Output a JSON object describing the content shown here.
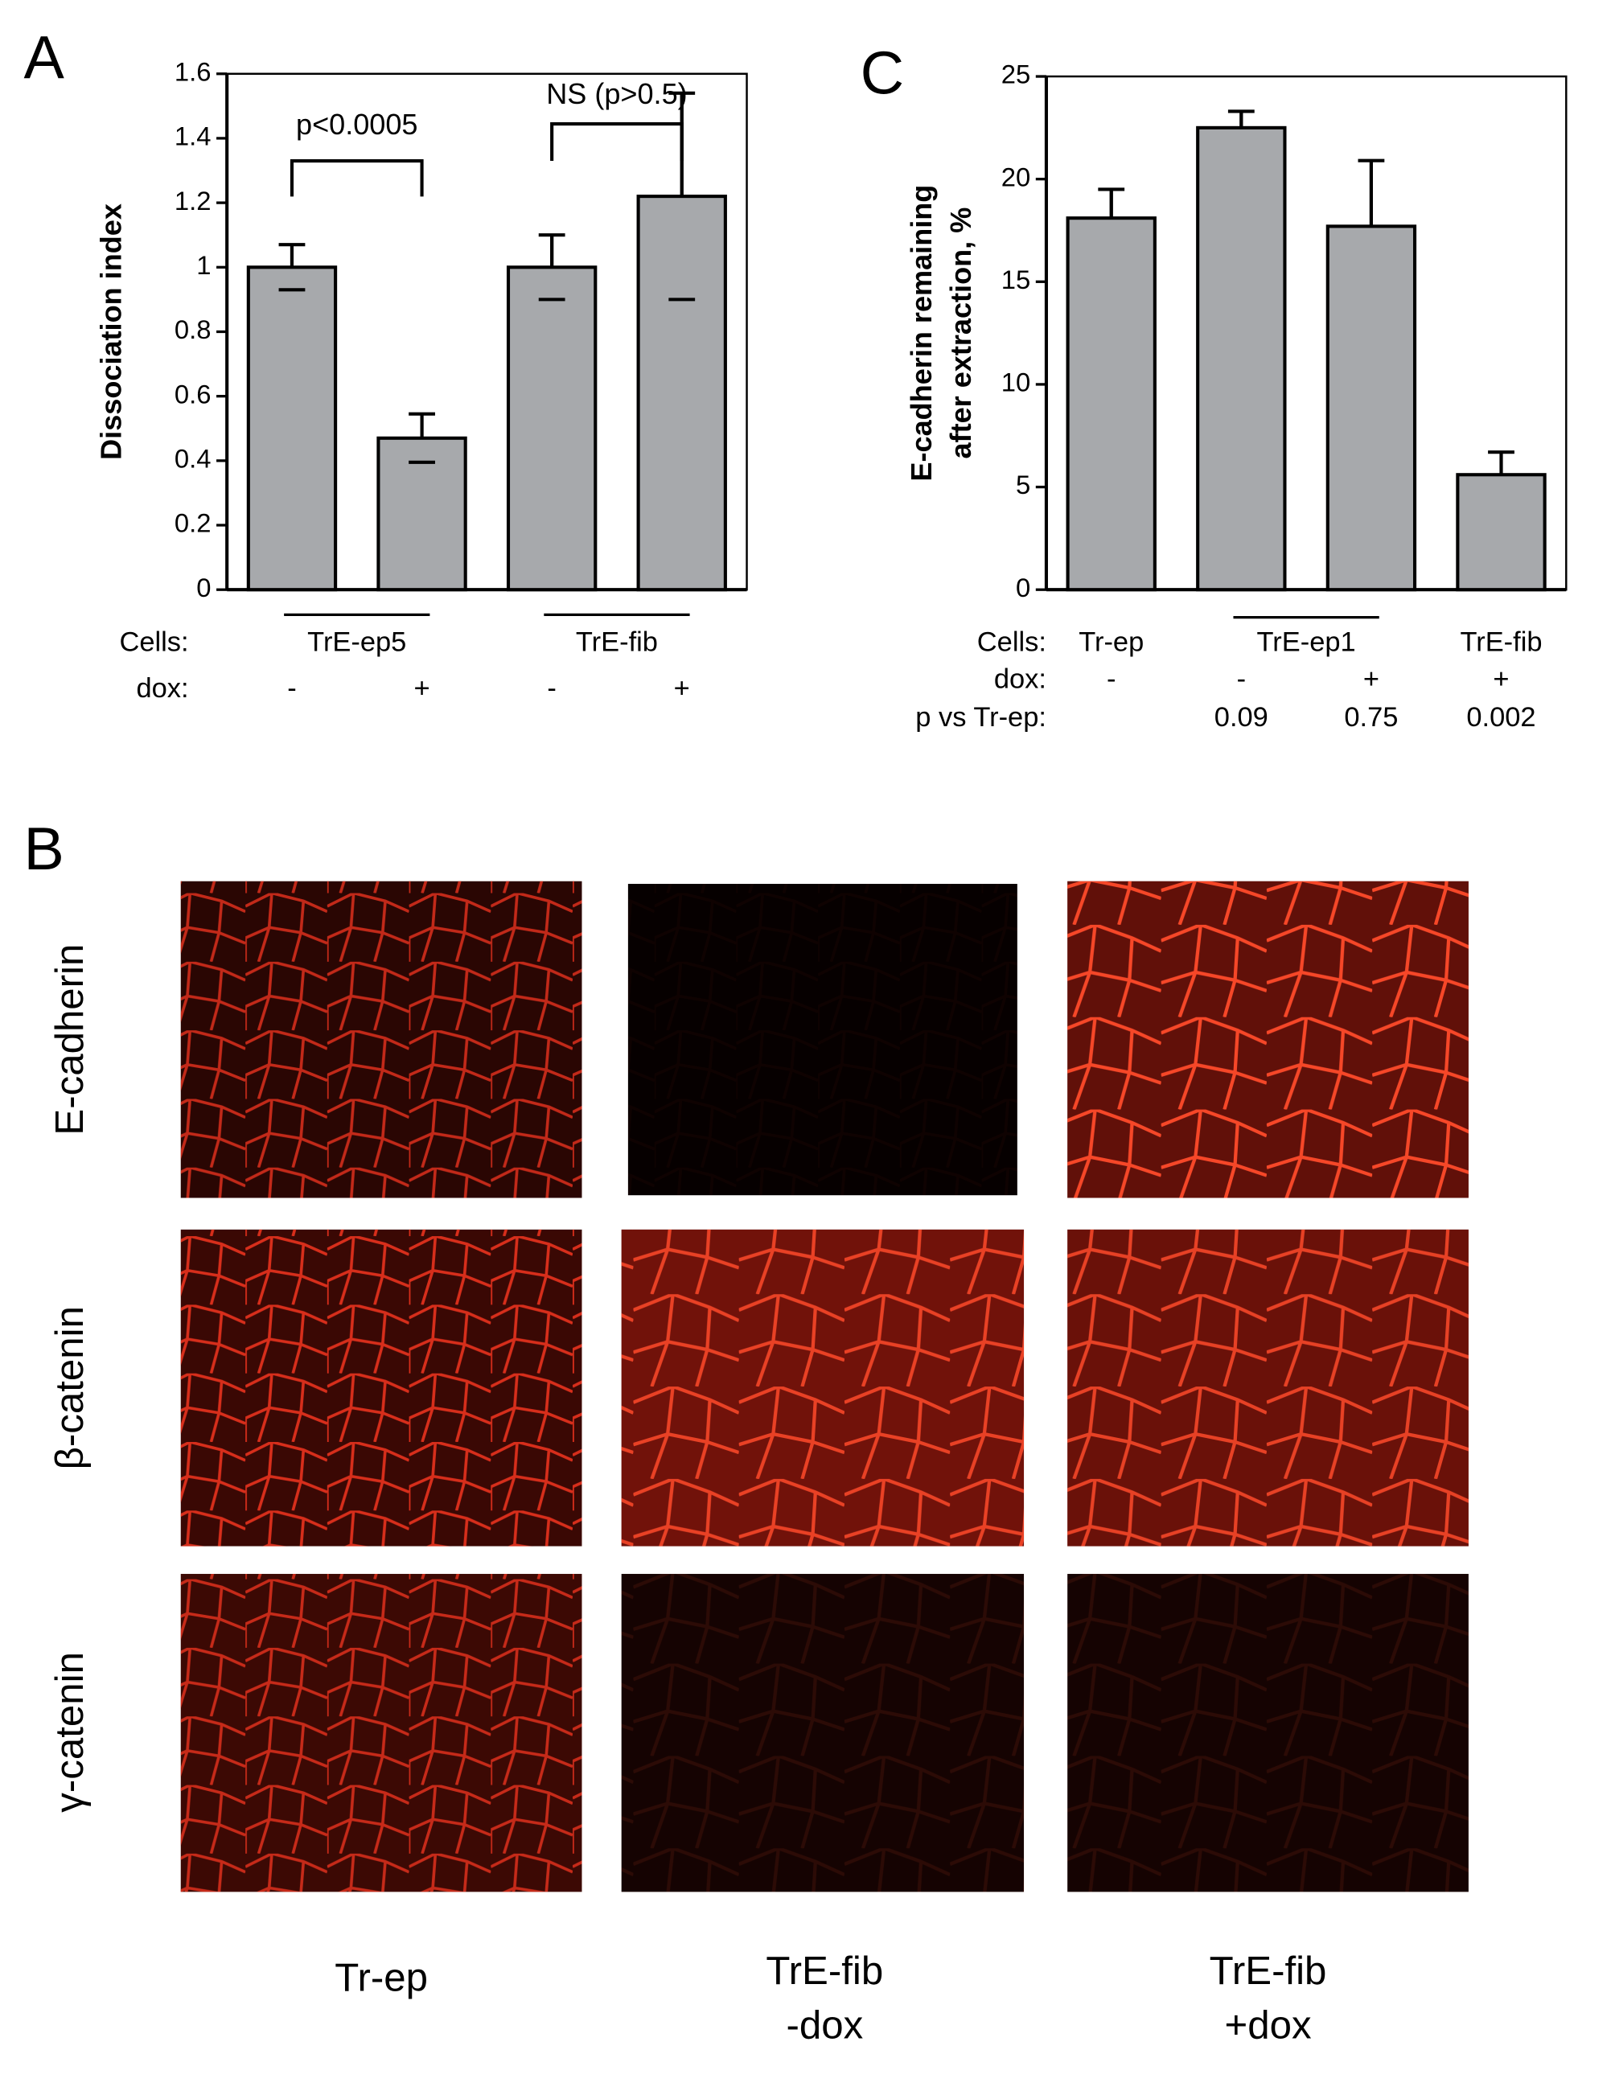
{
  "panel_labels": [
    "A",
    "C",
    "B"
  ],
  "chart_data": [
    {
      "type": "bar",
      "ylabel": [
        "Dissociation index"
      ],
      "color": "#a7a9ac",
      "ylim": [
        0,
        1.6
      ],
      "yticks": [
        0,
        0.2,
        0.4,
        0.6,
        0.8,
        1,
        1.2,
        1.4,
        1.6
      ],
      "row_labels": [
        "Cells:",
        "dox:"
      ],
      "cells": [
        "TrE-ep5",
        null,
        "TrE-fib",
        null
      ],
      "categories": [
        "-",
        "+",
        "-",
        "+"
      ],
      "values": [
        1.0,
        0.47,
        1.0,
        1.22
      ],
      "errors": [
        0.07,
        0.075,
        0.1,
        0.32
      ],
      "error_bars": "both",
      "annotations": [
        "p<0.0005",
        "NS (p>0.5)"
      ]
    },
    {
      "type": "bar",
      "ylabel": [
        "E-cadherin  remaining",
        "after extraction, %"
      ],
      "color": "#a7a9ac",
      "ylim": [
        0,
        25
      ],
      "yticks": [
        0,
        5,
        10,
        15,
        20,
        25
      ],
      "row_labels": [
        "Cells:",
        "dox:",
        "p vs Tr-ep:"
      ],
      "cells": [
        "Tr-ep",
        "TrE-ep1",
        null,
        "TrE-fib"
      ],
      "categories": [
        "-",
        "-",
        "+",
        "+"
      ],
      "p_values": [
        null,
        0.09,
        0.75,
        0.002
      ],
      "values": [
        18.1,
        22.5,
        17.7,
        5.6
      ],
      "errors": [
        1.4,
        0.8,
        3.2,
        1.1
      ],
      "error_bars": "up"
    }
  ],
  "microscopy": {
    "rows": [
      "E-cadherin",
      "β-catenin",
      "γ-catenin"
    ],
    "columns": [
      [
        "Tr-ep"
      ],
      [
        "TrE-fib",
        "-dox"
      ],
      [
        "TrE-fib",
        "+dox"
      ]
    ]
  }
}
